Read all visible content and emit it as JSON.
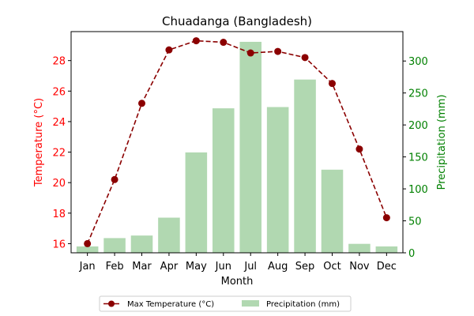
{
  "chart_data": {
    "type": "bar+line",
    "title": "Chuadanga (Bangladesh)",
    "xlabel": "Month",
    "categories": [
      "Jan",
      "Feb",
      "Mar",
      "Apr",
      "May",
      "Jun",
      "Jul",
      "Aug",
      "Sep",
      "Oct",
      "Nov",
      "Dec"
    ],
    "series": [
      {
        "name": "Max Temperature (°C)",
        "type": "line",
        "axis": "left",
        "color": "#8b0000",
        "values": [
          16.0,
          20.2,
          25.2,
          28.7,
          29.3,
          29.2,
          28.5,
          28.6,
          28.2,
          26.5,
          22.2,
          17.7
        ]
      },
      {
        "name": "Precipitation (mm)",
        "type": "bar",
        "axis": "right",
        "color": "#b1d8b1",
        "values": [
          10,
          23,
          27,
          55,
          157,
          226,
          330,
          228,
          271,
          130,
          14,
          10
        ]
      }
    ],
    "y_left": {
      "label": "Temperature (°C)",
      "color": "#ff0000",
      "lim": [
        15.4,
        29.9
      ],
      "ticks": [
        16,
        18,
        20,
        22,
        24,
        26,
        28
      ]
    },
    "y_right": {
      "label": "Precipitation (mm)",
      "color": "#008000",
      "lim": [
        0,
        346
      ],
      "ticks": [
        0,
        50,
        100,
        150,
        200,
        250,
        300
      ]
    },
    "grid": false,
    "legend": "bottom-center"
  }
}
